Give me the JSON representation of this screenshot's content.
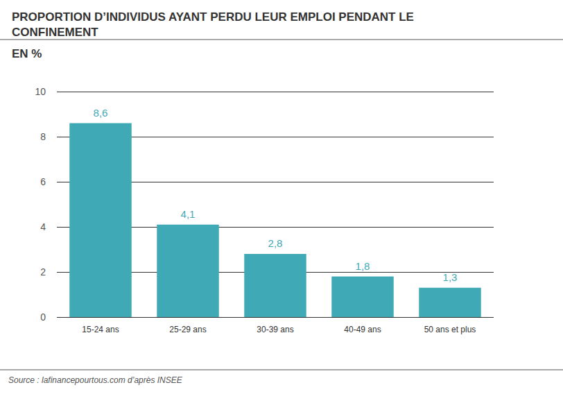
{
  "chart_data": {
    "type": "bar",
    "title": "PROPORTION D’INDIVIDUS AYANT PERDU LEUR EMPLOI PENDANT LE CONFINEMENT",
    "subtitle": "EN %",
    "source": "Source : lafinancepourtous.com d’après INSEE",
    "categories": [
      "15-24 ans",
      "25-29 ans",
      "30-39 ans",
      "40-49 ans",
      "50 ans et plus"
    ],
    "values": [
      8.6,
      4.1,
      2.8,
      1.8,
      1.3
    ],
    "value_labels": [
      "8,6",
      "4,1",
      "2,8",
      "1,8",
      "1,3"
    ],
    "data_labels": true,
    "color": "#3fa9b5",
    "ylim": [
      0,
      10
    ],
    "yticks": [
      0,
      2,
      4,
      6,
      8,
      10
    ],
    "grid": true
  }
}
